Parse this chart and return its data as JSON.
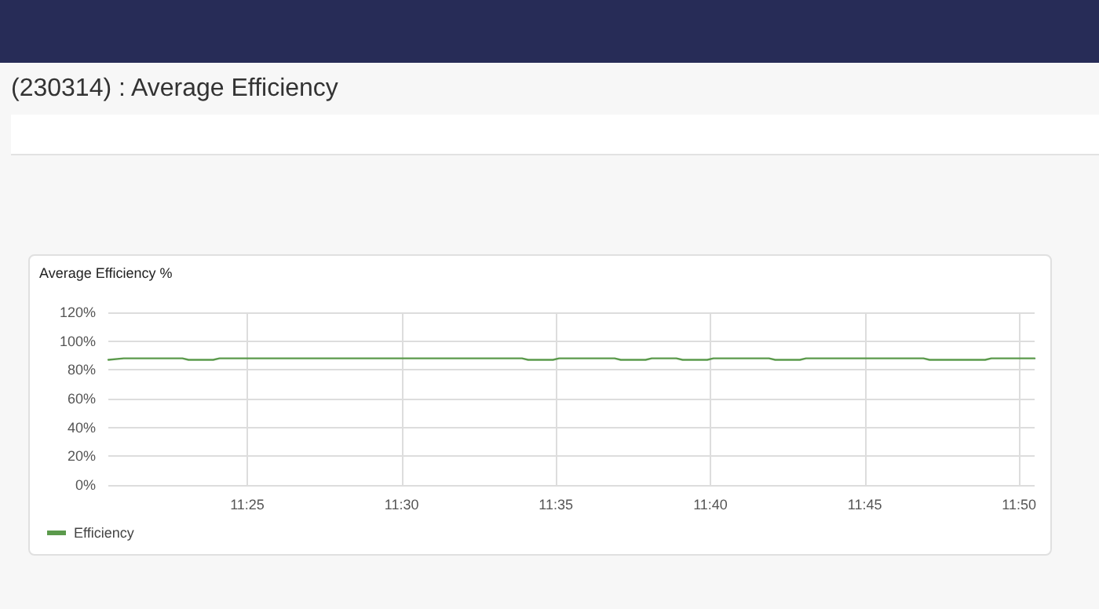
{
  "chart_data": {
    "type": "line",
    "title": "(230314) : Average Efficiency",
    "subtitle": "Average Efficiency %",
    "x": [
      11.3417,
      11.35,
      11.3817,
      11.385,
      11.3983,
      11.4017,
      11.565,
      11.5683,
      11.5817,
      11.585,
      11.615,
      11.6183,
      11.6317,
      11.635,
      11.6483,
      11.6517,
      11.665,
      11.6683,
      11.6983,
      11.7017,
      11.715,
      11.7183,
      11.7817,
      11.785,
      11.815,
      11.8183,
      11.8417
    ],
    "series": [
      {
        "name": "Efficiency",
        "color": "#5b9a4c",
        "values": [
          87,
          88,
          88,
          87,
          87,
          88,
          88,
          87,
          87,
          88,
          88,
          87,
          87,
          88,
          88,
          87,
          87,
          88,
          88,
          87,
          87,
          88,
          88,
          87,
          87,
          88,
          88
        ]
      }
    ],
    "xlim": [
      11.3417,
      11.8417
    ],
    "xticks": [
      {
        "value": 11.4167,
        "label": "11:25"
      },
      {
        "value": 11.5,
        "label": "11:30"
      },
      {
        "value": 11.5833,
        "label": "11:35"
      },
      {
        "value": 11.6667,
        "label": "11:40"
      },
      {
        "value": 11.75,
        "label": "11:45"
      },
      {
        "value": 11.8333,
        "label": "11:50"
      }
    ],
    "ylim": [
      0,
      120
    ],
    "yticks": [
      {
        "value": 0,
        "label": "0%"
      },
      {
        "value": 20,
        "label": "20%"
      },
      {
        "value": 40,
        "label": "40%"
      },
      {
        "value": 60,
        "label": "60%"
      },
      {
        "value": 80,
        "label": "80%"
      },
      {
        "value": 100,
        "label": "100%"
      },
      {
        "value": 120,
        "label": "120%"
      }
    ],
    "grid": true,
    "legend": "bottom left",
    "marker": "none",
    "line_style": "solid"
  }
}
